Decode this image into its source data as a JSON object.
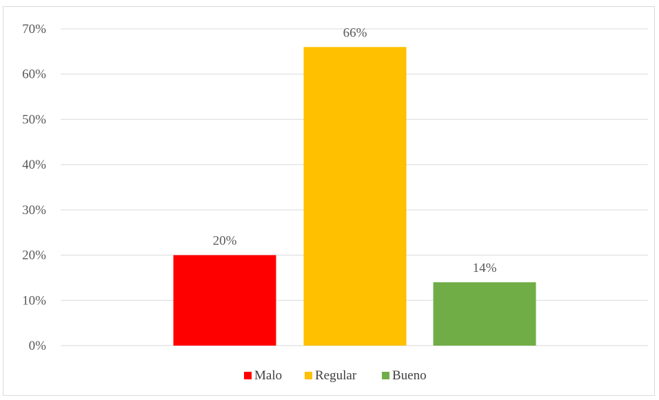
{
  "chart_data": {
    "type": "bar",
    "title": "",
    "xlabel": "",
    "ylabel": "",
    "categories": [
      "Malo",
      "Regular",
      "Bueno"
    ],
    "values": [
      20,
      66,
      14
    ],
    "value_labels": [
      "20%",
      "66%",
      "14%"
    ],
    "colors": [
      "#ff0000",
      "#ffc000",
      "#70ad47"
    ],
    "ylim": [
      0,
      70
    ],
    "yticks": [
      0,
      10,
      20,
      30,
      40,
      50,
      60,
      70
    ],
    "ytick_labels": [
      "0%",
      "10%",
      "20%",
      "30%",
      "40%",
      "50%",
      "60%",
      "70%"
    ],
    "grid": true,
    "legend": {
      "position": "bottom",
      "entries": [
        "Malo",
        "Regular",
        "Bueno"
      ]
    }
  }
}
